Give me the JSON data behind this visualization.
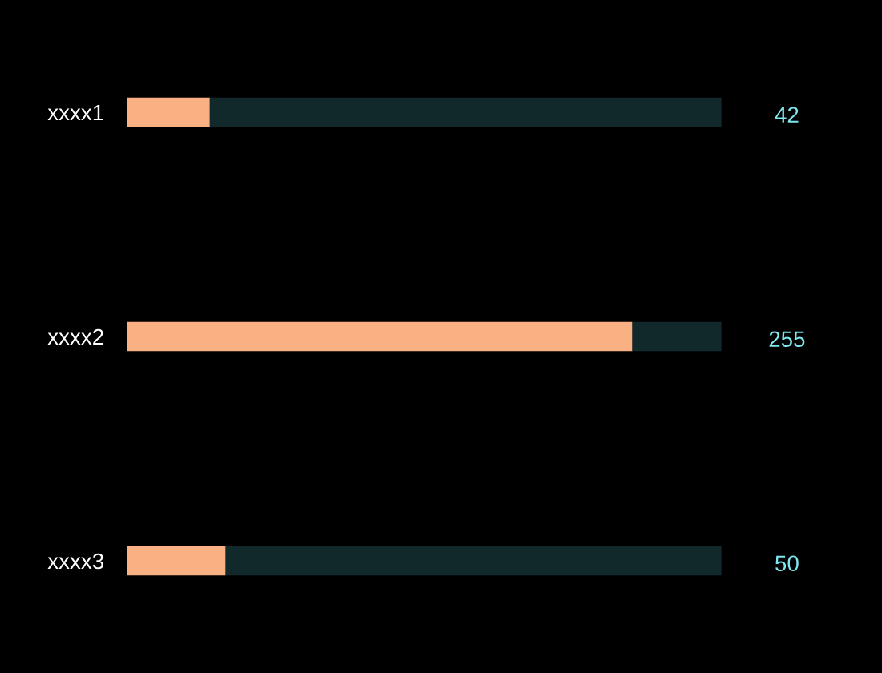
{
  "chart_data": {
    "type": "bar",
    "orientation": "horizontal",
    "stacked": true,
    "categories": [
      "xxxx1",
      "xxxx2",
      "xxxx3"
    ],
    "series": [
      {
        "color": "#f9b083",
        "values": [
          42,
          255,
          50
        ],
        "value_labels": [
          "42",
          "255",
          "50"
        ]
      },
      {
        "color": "#12292c",
        "values": [
          258,
          45,
          250
        ]
      }
    ],
    "xlim": [
      0,
      300
    ],
    "grid": false,
    "legend": false
  }
}
